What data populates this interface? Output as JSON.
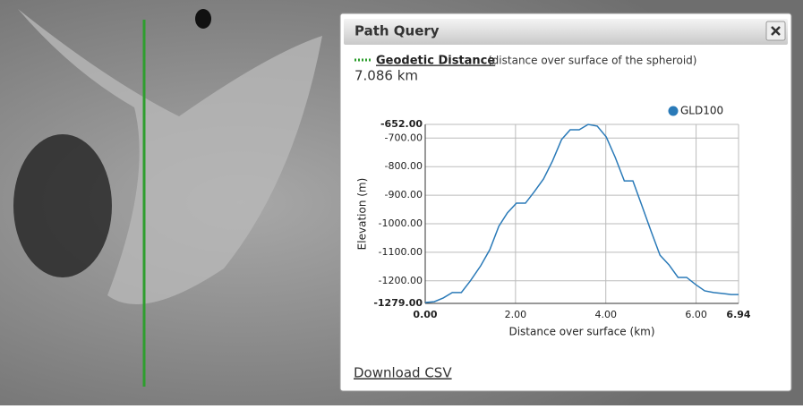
{
  "panel": {
    "title": "Path Query",
    "measure_link": "Geodetic Distance",
    "measure_note": "(distance over surface of the spheroid)",
    "distance": "7.086 km",
    "download": "Download CSV"
  },
  "chart_data": {
    "type": "line",
    "x": [
      0,
      0.2,
      0.4,
      0.6,
      0.8,
      1.0,
      1.23,
      1.43,
      1.63,
      1.82,
      2.02,
      2.22,
      2.42,
      2.62,
      2.82,
      3.02,
      3.21,
      3.41,
      3.61,
      3.81,
      4.01,
      4.21,
      4.41,
      4.6,
      4.8,
      5.0,
      5.2,
      5.4,
      5.6,
      5.79,
      5.99,
      6.19,
      6.39,
      6.58,
      6.78,
      6.94
    ],
    "series": [
      {
        "name": "GLD100",
        "color": "#2a7ab8",
        "values": [
          -1276,
          -1273,
          -1260,
          -1241,
          -1241,
          -1200,
          -1147,
          -1091,
          -1009,
          -962,
          -928,
          -928,
          -887,
          -843,
          -780,
          -705,
          -671,
          -671,
          -652,
          -658,
          -696,
          -768,
          -850,
          -850,
          -937,
          -1025,
          -1110,
          -1144,
          -1188,
          -1188,
          -1213,
          -1235,
          -1241,
          -1244,
          -1248,
          -1248
        ]
      }
    ],
    "xlabel": "Distance over surface (km)",
    "ylabel": "Elevation (m)",
    "xlim": [
      0,
      6.94
    ],
    "ylim": [
      -1279,
      -652
    ],
    "xticks": [
      {
        "value": 0,
        "label": "0.00"
      },
      {
        "value": 2,
        "label": "2.00"
      },
      {
        "value": 4,
        "label": "4.00"
      },
      {
        "value": 6,
        "label": "6.00"
      },
      {
        "value": 6.94,
        "label": "6.94"
      }
    ],
    "yticks": [
      {
        "value": -1279,
        "label": "-1279.00"
      },
      {
        "value": -1200,
        "label": "-1200.00"
      },
      {
        "value": -1100,
        "label": "-1100.00"
      },
      {
        "value": -1000,
        "label": "-1000.00"
      },
      {
        "value": -900,
        "label": "-900.00"
      },
      {
        "value": -800,
        "label": "-800.00"
      },
      {
        "value": -700,
        "label": "-700.00"
      },
      {
        "value": -652,
        "label": "-652.00"
      }
    ],
    "grid": true,
    "legend": "top-right"
  }
}
